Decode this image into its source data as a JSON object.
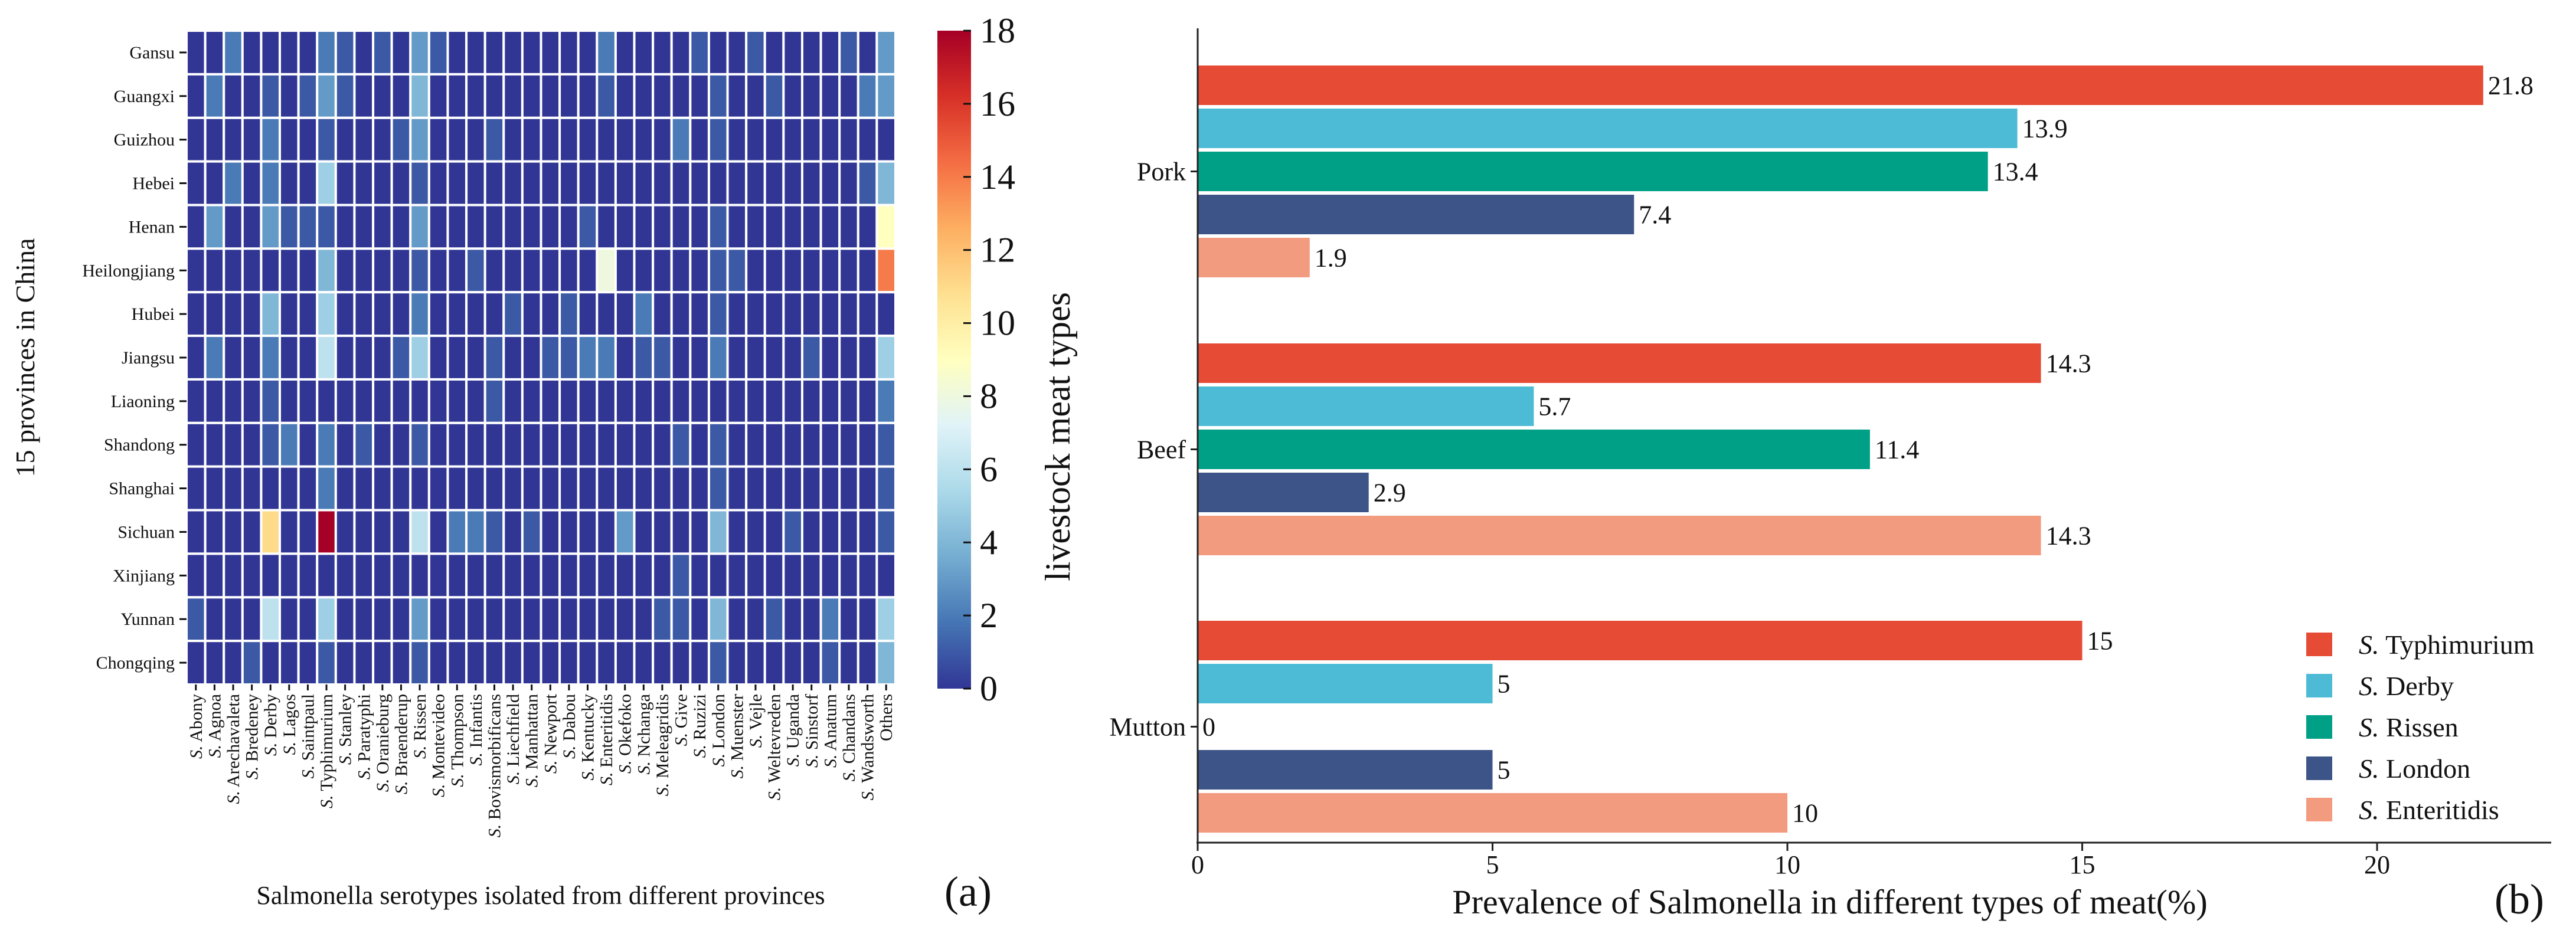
{
  "chart_data": [
    {
      "type": "heatmap",
      "panel_label": "(a)",
      "xlabel": "Salmonella serotypes isolated from different provinces",
      "ylabel": "15 provinces in China",
      "colormap": "RdYlBu_r",
      "vmin": 0,
      "vmax": 18,
      "colorbar_ticks": [
        0,
        2,
        4,
        6,
        8,
        10,
        12,
        14,
        16,
        18
      ],
      "rows": [
        "Gansu",
        "Guangxi",
        "Guizhou",
        "Hebei",
        "Henan",
        "Heilongjiang",
        "Hubei",
        "Jiangsu",
        "Liaoning",
        "Shandong",
        "Shanghai",
        "Sichuan",
        "Xinjiang",
        "Yunnan",
        "Chongqing"
      ],
      "columns": [
        "S. Abony",
        "S. Agnoa",
        "S. Arechavaleta",
        "S. Bredeney",
        "S. Derby",
        "S. Lagos",
        "S. Saintpaul",
        "S. Typhimurium",
        "S. Stanley",
        "S. Paratyphi",
        "S. Oranieburg",
        "S. Braenderup",
        "S. Rissen",
        "S. Montevideo",
        "S. Thompson",
        "S. Infantis",
        "S. Bovismorbificans",
        "S. Liechfield",
        "S. Manhattan",
        "S. Newport",
        "S. Dabou",
        "S. Kentucky",
        "S. Enteritidis",
        "S. Okefoko",
        "S. Nchanga",
        "S. Meleagridis",
        "S. Give",
        "S. Ruzizi",
        "S. London",
        "S. Muenster",
        "S. Vejle",
        "S. Weltevreden",
        "S. Uganda",
        "S. Sinstorf",
        "S. Anatum",
        "S. Chandans",
        "S. Wandsworth",
        "Others"
      ],
      "values": [
        [
          0,
          0,
          2,
          0,
          0,
          0,
          0,
          2,
          1,
          0,
          1,
          0,
          3,
          1,
          0,
          0,
          0,
          0,
          0,
          0,
          0,
          0,
          2,
          0,
          0,
          0,
          0,
          1,
          0,
          0,
          1,
          0,
          0,
          0,
          0,
          1,
          0,
          3
        ],
        [
          0,
          2,
          0,
          0,
          1,
          0,
          1,
          3,
          1,
          0,
          0,
          0,
          4,
          0,
          0,
          0,
          0,
          0,
          0,
          0,
          0,
          0,
          1,
          0,
          0,
          0,
          0,
          0,
          1,
          0,
          0,
          1,
          0,
          0,
          0,
          0,
          2,
          3
        ],
        [
          0,
          0,
          0,
          0,
          2,
          0,
          0,
          1,
          0,
          0,
          0,
          1,
          3,
          0,
          0,
          0,
          1,
          0,
          0,
          0,
          0,
          0,
          0,
          0,
          0,
          0,
          2,
          0,
          1,
          0,
          0,
          0,
          0,
          0,
          0,
          0,
          0,
          0
        ],
        [
          0,
          0,
          2,
          0,
          2,
          0,
          0,
          5,
          0,
          0,
          0,
          0,
          1,
          0,
          0,
          0,
          0,
          0,
          0,
          0,
          0,
          0,
          0,
          0,
          0,
          0,
          0,
          0,
          0,
          0,
          0,
          0,
          0,
          0,
          0,
          0,
          1,
          4
        ],
        [
          0,
          3,
          0,
          0,
          3,
          1,
          1,
          1,
          0,
          0,
          0,
          0,
          3,
          0,
          0,
          0,
          0,
          0,
          0,
          0,
          0,
          1,
          0,
          0,
          0,
          0,
          0,
          0,
          1,
          0,
          0,
          0,
          0,
          0,
          0,
          0,
          0,
          9
        ],
        [
          0,
          0,
          0,
          0,
          0,
          0,
          0,
          4,
          0,
          0,
          0,
          0,
          1,
          0,
          0,
          1,
          0,
          0,
          0,
          0,
          0,
          0,
          8,
          0,
          0,
          0,
          0,
          0,
          1,
          1,
          0,
          0,
          0,
          0,
          0,
          0,
          0,
          14
        ],
        [
          0,
          0,
          0,
          0,
          4,
          0,
          0,
          5,
          0,
          0,
          0,
          0,
          2,
          0,
          0,
          0,
          0,
          1,
          0,
          0,
          1,
          0,
          0,
          0,
          2,
          0,
          0,
          0,
          1,
          0,
          0,
          0,
          0,
          0,
          0,
          0,
          0,
          0
        ],
        [
          0,
          2,
          0,
          0,
          2,
          0,
          0,
          6,
          0,
          0,
          0,
          1,
          5,
          0,
          0,
          0,
          1,
          0,
          0,
          1,
          1,
          2,
          2,
          0,
          1,
          1,
          0,
          0,
          2,
          0,
          0,
          0,
          0,
          1,
          0,
          0,
          0,
          5
        ],
        [
          0,
          0,
          0,
          0,
          1,
          0,
          0,
          0,
          0,
          0,
          0,
          0,
          0,
          0,
          0,
          0,
          1,
          0,
          0,
          0,
          0,
          0,
          0,
          0,
          0,
          0,
          0,
          0,
          0,
          0,
          0,
          0,
          0,
          0,
          0,
          0,
          0,
          2
        ],
        [
          0,
          0,
          0,
          0,
          1,
          2,
          0,
          2,
          0,
          1,
          0,
          0,
          1,
          0,
          0,
          0,
          0,
          0,
          0,
          0,
          0,
          0,
          0,
          0,
          0,
          0,
          1,
          0,
          1,
          0,
          0,
          0,
          0,
          0,
          0,
          0,
          0,
          1
        ],
        [
          0,
          0,
          0,
          0,
          0,
          0,
          0,
          2,
          0,
          0,
          0,
          0,
          0,
          0,
          0,
          0,
          0,
          0,
          0,
          0,
          0,
          0,
          0,
          0,
          0,
          0,
          0,
          0,
          1,
          0,
          0,
          0,
          0,
          0,
          0,
          0,
          0,
          1
        ],
        [
          0,
          0,
          0,
          0,
          11,
          0,
          0,
          18,
          0,
          0,
          0,
          0,
          6,
          0,
          2,
          2,
          1,
          0,
          1,
          0,
          0,
          0,
          0,
          3,
          0,
          0,
          0,
          0,
          4,
          0,
          0,
          0,
          1,
          0,
          0,
          0,
          0,
          1
        ],
        [
          0,
          0,
          0,
          0,
          0,
          0,
          0,
          0,
          0,
          0,
          0,
          0,
          0,
          0,
          0,
          0,
          0,
          0,
          0,
          0,
          0,
          0,
          0,
          0,
          0,
          0,
          1,
          0,
          0,
          0,
          0,
          0,
          0,
          0,
          0,
          0,
          0,
          0
        ],
        [
          1,
          0,
          0,
          0,
          6,
          0,
          0,
          5,
          0,
          0,
          0,
          0,
          3,
          0,
          0,
          0,
          0,
          0,
          0,
          0,
          0,
          0,
          0,
          0,
          0,
          1,
          1,
          0,
          4,
          0,
          0,
          1,
          0,
          0,
          2,
          0,
          0,
          5
        ],
        [
          0,
          0,
          0,
          1,
          0,
          0,
          0,
          1,
          0,
          0,
          0,
          0,
          1,
          0,
          0,
          0,
          0,
          0,
          0,
          0,
          0,
          0,
          0,
          0,
          0,
          0,
          0,
          0,
          1,
          0,
          0,
          0,
          0,
          0,
          1,
          0,
          0,
          4
        ]
      ]
    },
    {
      "type": "bar",
      "orientation": "horizontal",
      "panel_label": "(b)",
      "xlabel": "Prevalence of Salmonella in different types of meat(%)",
      "ylabel": "livestock meat types",
      "categories": [
        "Pork",
        "Beef",
        "Mutton"
      ],
      "xlim": [
        0,
        23
      ],
      "xticks": [
        0,
        5,
        10,
        15,
        20
      ],
      "legend_position": "bottom-right",
      "series": [
        {
          "name": "S. Typhimurium",
          "color": "#e64b35",
          "values": [
            21.8,
            14.3,
            15
          ],
          "labels": [
            "21.8",
            "14.3",
            "15"
          ]
        },
        {
          "name": "S. Derby",
          "color": "#4dbbd5",
          "values": [
            13.9,
            5.7,
            5
          ],
          "labels": [
            "13.9",
            "5.7",
            "5"
          ]
        },
        {
          "name": "S. Rissen",
          "color": "#00a087",
          "values": [
            13.4,
            11.4,
            0
          ],
          "labels": [
            "13.4",
            "11.4",
            "0"
          ]
        },
        {
          "name": "S. London",
          "color": "#3c5488",
          "values": [
            7.4,
            2.9,
            5
          ],
          "labels": [
            "7.4",
            "2.9",
            "5"
          ]
        },
        {
          "name": "S. Enteritidis",
          "color": "#f39b7f",
          "values": [
            1.9,
            14.3,
            10
          ],
          "labels": [
            "1.9",
            "14.3",
            "10"
          ]
        }
      ]
    }
  ]
}
